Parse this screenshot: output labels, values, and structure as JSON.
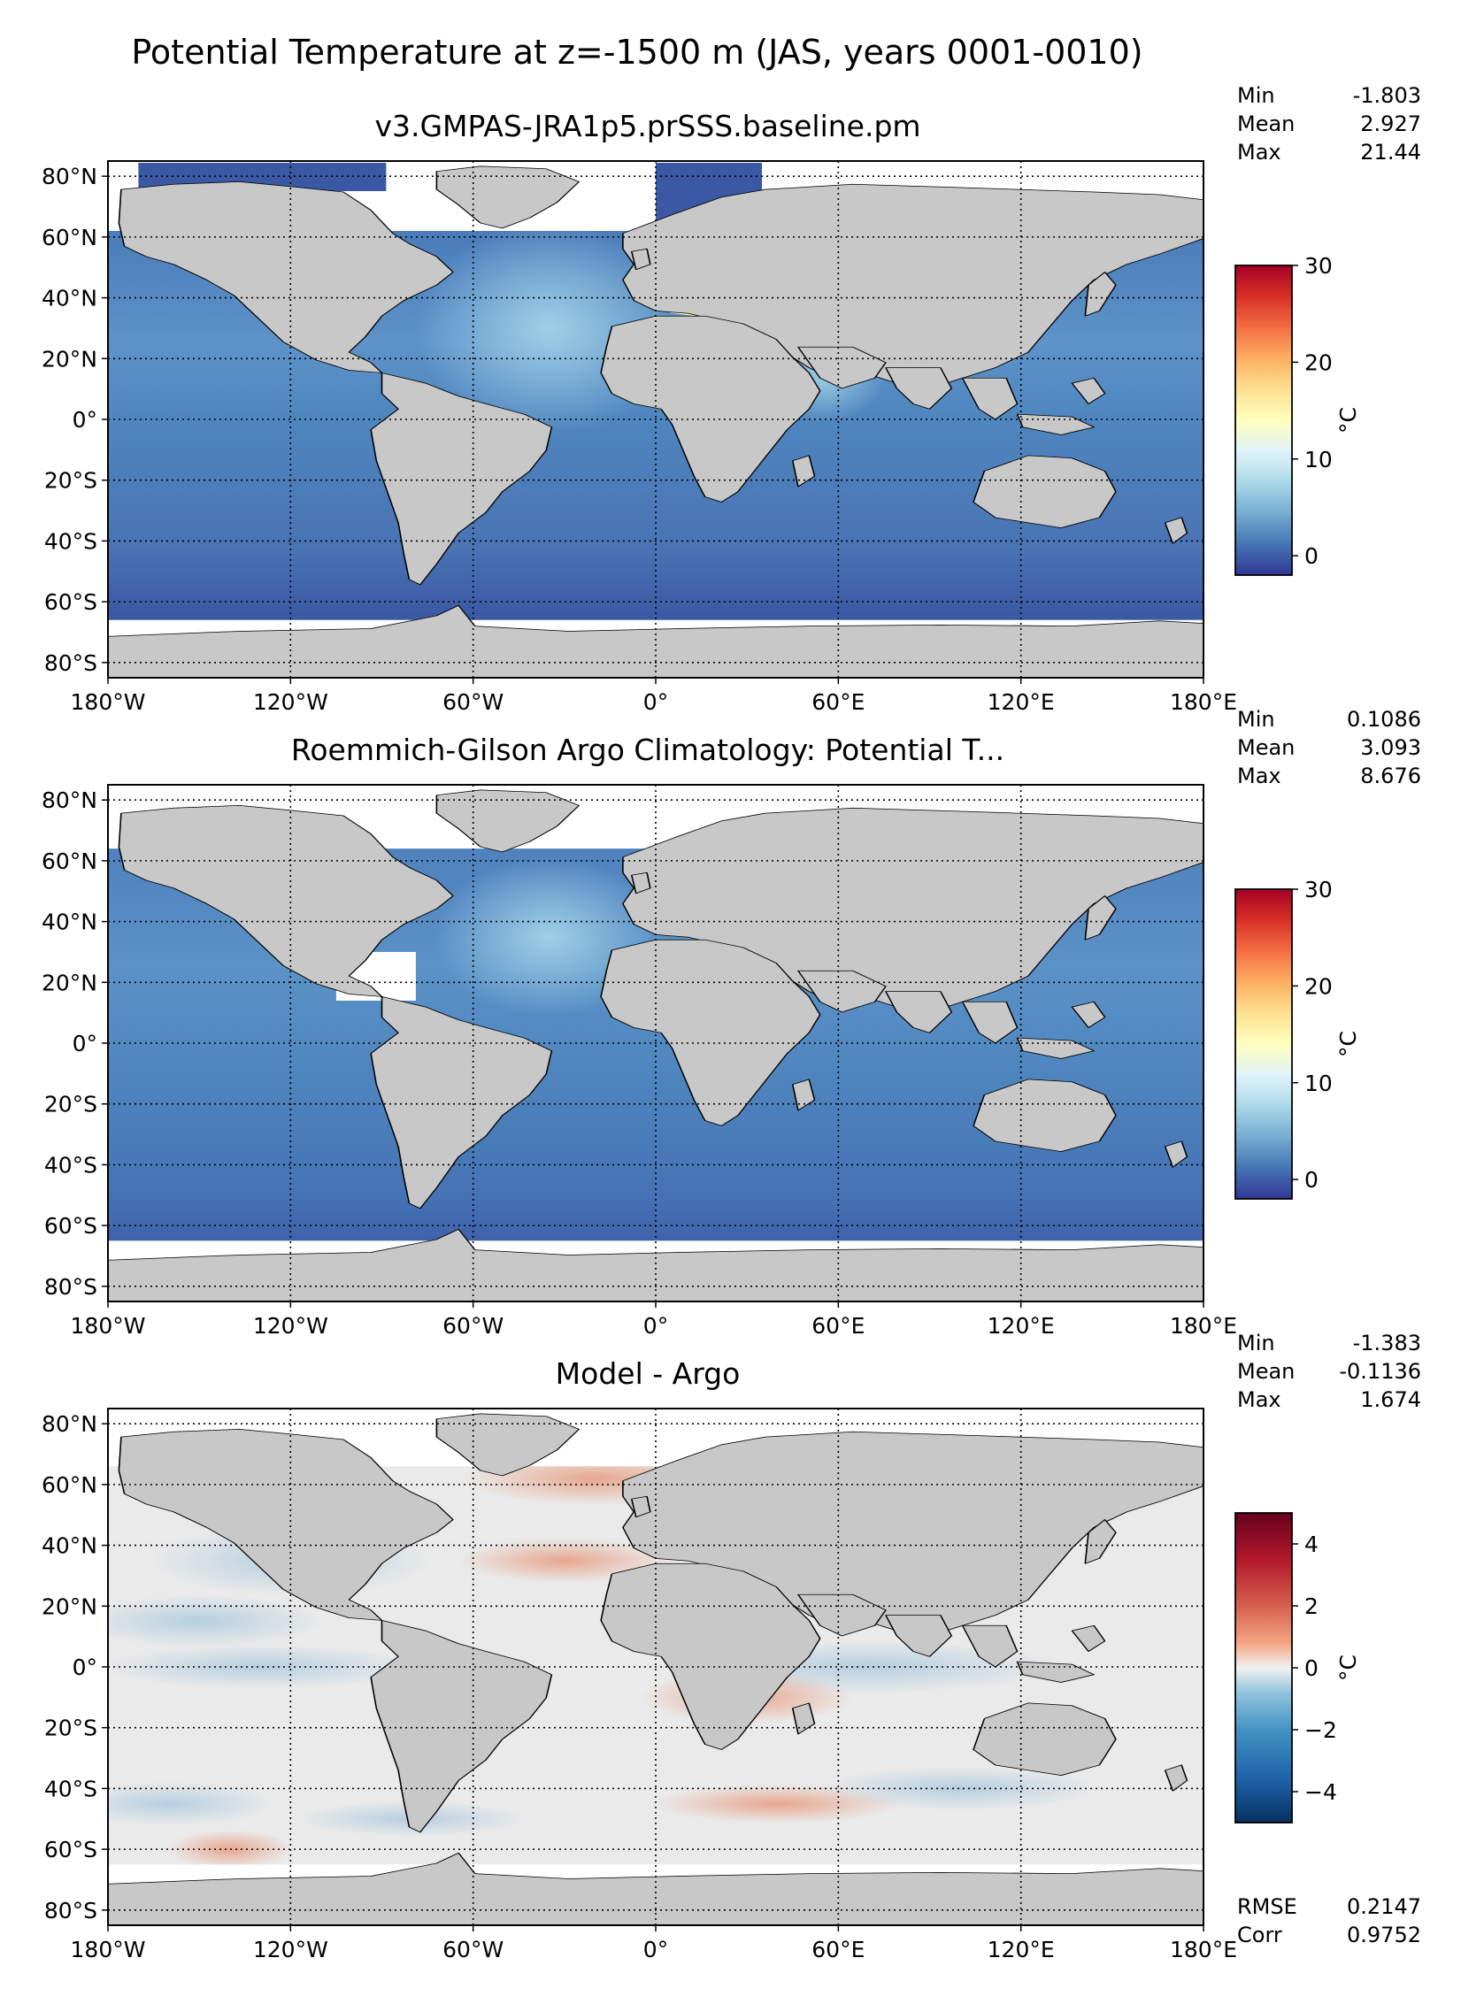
{
  "figure": {
    "suptitle": "Potential Temperature at z=-1500 m (JAS, years 0001-0010)"
  },
  "axes": {
    "xticks": [
      "180°W",
      "120°W",
      "60°W",
      "0°",
      "60°E",
      "120°E",
      "180°E"
    ],
    "yticks": [
      "80°N",
      "60°N",
      "40°N",
      "20°N",
      "0°",
      "20°S",
      "40°S",
      "60°S",
      "80°S"
    ]
  },
  "chart_data": [
    {
      "type": "heatmap",
      "title": "v3.GMPAS-JRA1p5.prSSS.baseline.pm",
      "colormap": "RdYlBu_r",
      "colorbar": {
        "label": "°C",
        "min": -2,
        "max": 30,
        "ticks": [
          "0",
          "10",
          "20",
          "30"
        ],
        "tick_values": [
          0,
          10,
          20,
          30
        ]
      },
      "stats": [
        {
          "label": "Min",
          "value": "-1.803"
        },
        {
          "label": "Mean",
          "value": "2.927"
        },
        {
          "label": "Max",
          "value": "21.44"
        }
      ],
      "xlim": [
        -180,
        180
      ],
      "ylim": [
        -85,
        85
      ]
    },
    {
      "type": "heatmap",
      "title": "Roemmich-Gilson Argo Climatology: Potential T...",
      "colormap": "RdYlBu_r",
      "colorbar": {
        "label": "°C",
        "min": -2,
        "max": 30,
        "ticks": [
          "0",
          "10",
          "20",
          "30"
        ],
        "tick_values": [
          0,
          10,
          20,
          30
        ]
      },
      "stats": [
        {
          "label": "Min",
          "value": "0.1086"
        },
        {
          "label": "Mean",
          "value": "3.093"
        },
        {
          "label": "Max",
          "value": "8.676"
        }
      ],
      "xlim": [
        -180,
        180
      ],
      "ylim": [
        -85,
        85
      ]
    },
    {
      "type": "heatmap",
      "title": "Model - Argo",
      "colormap": "RdBu_r",
      "colorbar": {
        "label": "°C",
        "min": -5,
        "max": 5,
        "ticks": [
          "4",
          "2",
          "0",
          "−2",
          "−4"
        ],
        "tick_values": [
          4,
          2,
          0,
          -2,
          -4
        ]
      },
      "stats": [
        {
          "label": "Min",
          "value": "-1.383"
        },
        {
          "label": "Mean",
          "value": "-0.1136"
        },
        {
          "label": "Max",
          "value": "1.674"
        }
      ],
      "extra_stats": [
        {
          "label": "RMSE",
          "value": "0.2147"
        },
        {
          "label": "Corr",
          "value": "0.9752"
        }
      ],
      "xlim": [
        -180,
        180
      ],
      "ylim": [
        -85,
        85
      ]
    }
  ],
  "colors": {
    "land": "#c8c8c8",
    "ocean_deep_blue": "#4a78b8",
    "ocean_light_blue": "#8cc3e0",
    "mediterranean": "#fbf3b0",
    "diff_background": "#eaeaea"
  }
}
